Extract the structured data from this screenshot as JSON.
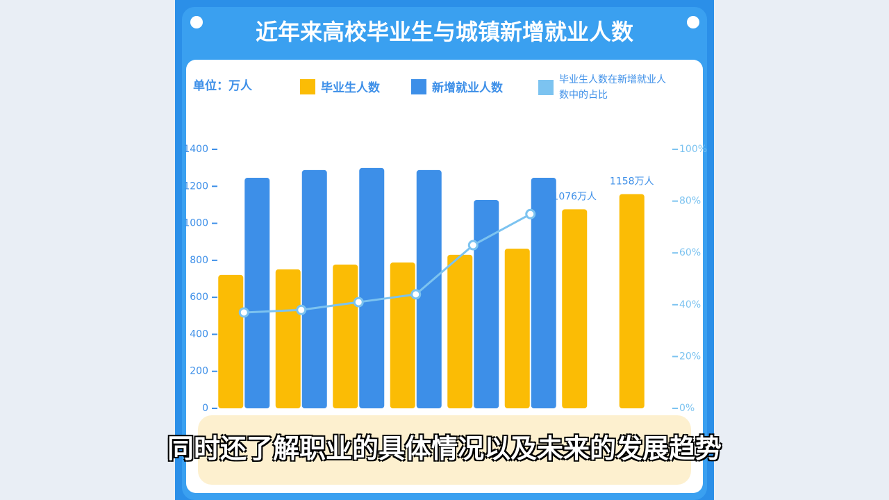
{
  "chart_data": {
    "type": "bar",
    "title": "近年来高校毕业生与城镇新增就业人数",
    "unit": "单位：万人",
    "categories": [
      null,
      null,
      null,
      null,
      null,
      null,
      null,
      null
    ],
    "series": [
      {
        "name": "毕业生人数",
        "color": "#fbbc05",
        "values": [
          721,
          751,
          777,
          788,
          830,
          863,
          1076,
          1158
        ],
        "value_labels": [
          null,
          null,
          null,
          null,
          null,
          null,
          "1076万人",
          "1158万人"
        ]
      },
      {
        "name": "新增就业人数",
        "color": "#3d8fe8",
        "values": [
          1246,
          1288,
          1299,
          1288,
          1126,
          1246,
          null,
          null
        ]
      },
      {
        "name": "毕业生人数在新增就业人数中的占比",
        "color": "#7cc3f0",
        "type": "line",
        "axis": "y2",
        "values": [
          37,
          38,
          41,
          44,
          63,
          75,
          null,
          null
        ]
      }
    ],
    "ylim": [
      0,
      1400
    ],
    "yticks": [
      0,
      200,
      400,
      600,
      800,
      1000,
      1200,
      1400
    ],
    "y2lim": [
      0,
      100
    ],
    "y2ticks": [
      {
        "value": 0,
        "label": "0%"
      },
      {
        "value": 20,
        "label": "20%"
      },
      {
        "value": 40,
        "label": "40%"
      },
      {
        "value": 60,
        "label": "60%"
      },
      {
        "value": 80,
        "label": "80%"
      },
      {
        "value": 100,
        "label": "100%"
      }
    ]
  },
  "caption": "同时还了解职业的具体情况以及未来的发展趋势"
}
